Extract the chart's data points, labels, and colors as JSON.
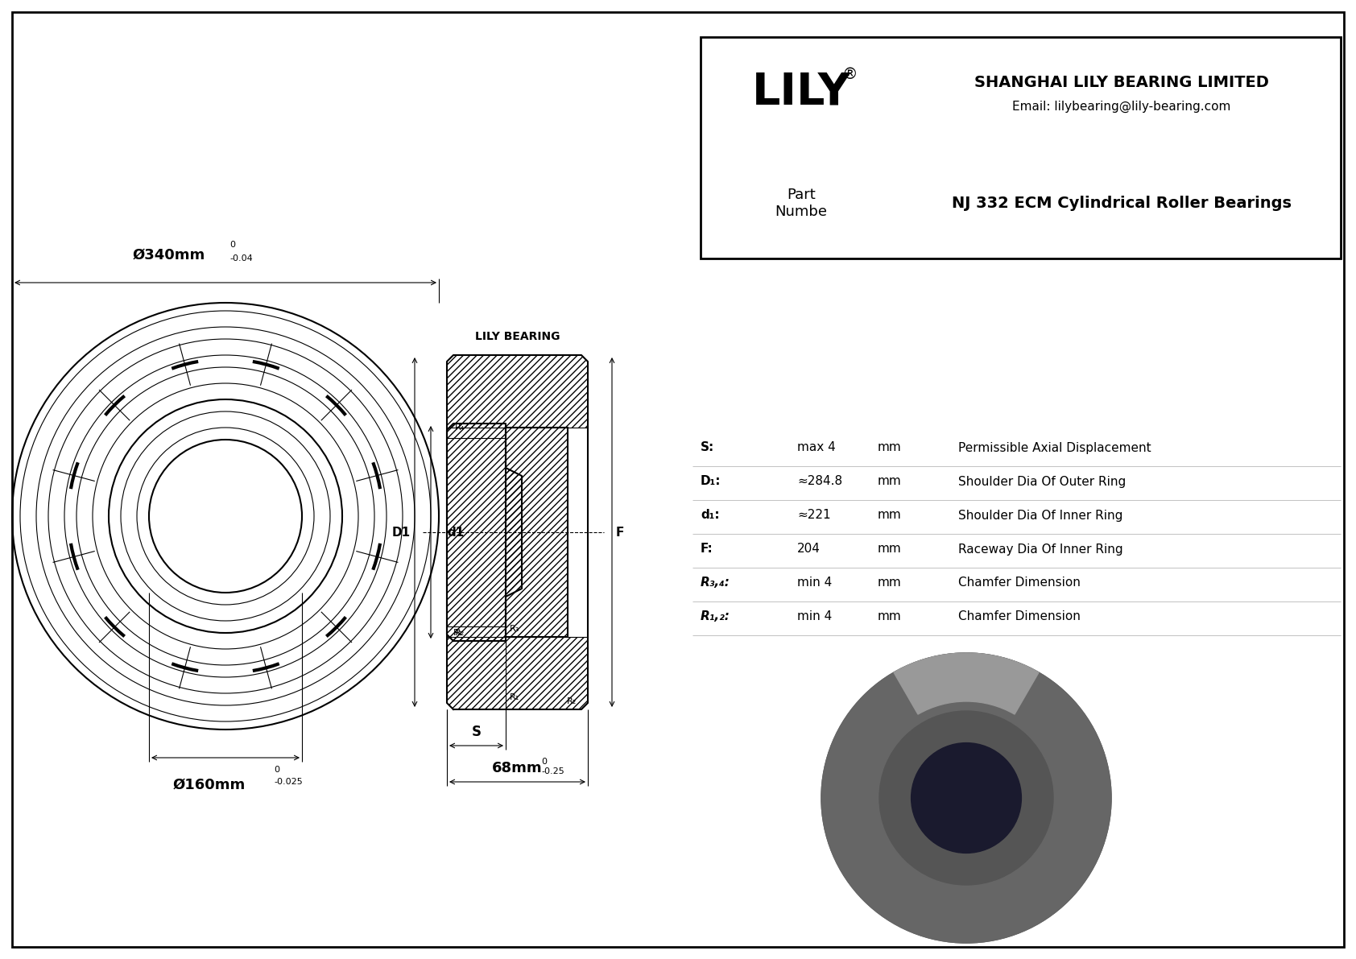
{
  "bg_color": "#ffffff",
  "border_color": "#000000",
  "drawing_color": "#000000",
  "title": "NJ 332 ECM Cylindrical Roller Bearings",
  "company": "SHANGHAI LILY BEARING LIMITED",
  "email": "Email: lilybearing@lily-bearing.com",
  "part_label": "Part\nNumbe",
  "lily_text": "LILY",
  "lily_bearing_label": "LILY BEARING",
  "dim_outer": "Ø340mm",
  "dim_outer_tol_top": "0",
  "dim_outer_tol_bot": "-0.04",
  "dim_inner": "Ø160mm",
  "dim_inner_tol_top": "0",
  "dim_inner_tol_bot": "-0.025",
  "dim_width": "68mm",
  "dim_width_tol_top": "0",
  "dim_width_tol_bot": "-0.25",
  "params": [
    {
      "label": "R₁,₂:",
      "value": "min 4",
      "unit": "mm",
      "desc": "Chamfer Dimension"
    },
    {
      "label": "R₃,₄:",
      "value": "min 4",
      "unit": "mm",
      "desc": "Chamfer Dimension"
    },
    {
      "label": "F:",
      "value": "204",
      "unit": "mm",
      "desc": "Raceway Dia Of Inner Ring"
    },
    {
      "label": "d₁:",
      "value": "≈221",
      "unit": "mm",
      "desc": "Shoulder Dia Of Inner Ring"
    },
    {
      "label": "D₁:",
      "value": "≈284.8",
      "unit": "mm",
      "desc": "Shoulder Dia Of Outer Ring"
    },
    {
      "label": "S:",
      "value": "max 4",
      "unit": "mm",
      "desc": "Permissible Axial Displacement"
    }
  ]
}
